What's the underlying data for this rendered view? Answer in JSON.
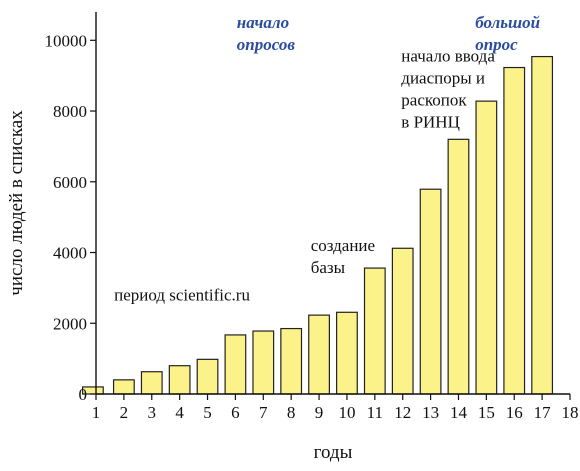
{
  "chart_data": {
    "type": "bar",
    "categories": [
      1,
      2,
      3,
      4,
      5,
      6,
      7,
      8,
      9,
      10,
      11,
      12,
      13,
      14,
      15,
      16,
      17
    ],
    "values": [
      200,
      400,
      630,
      800,
      980,
      1670,
      1780,
      1850,
      2230,
      2310,
      3560,
      4120,
      5790,
      7200,
      8280,
      9230,
      9540
    ],
    "xlabel": "годы",
    "ylabel": "число людей в списках",
    "xlim": [
      1,
      18
    ],
    "ylim": [
      0,
      10800
    ],
    "x_ticks": [
      1,
      2,
      3,
      4,
      5,
      6,
      7,
      8,
      9,
      10,
      11,
      12,
      13,
      14,
      15,
      16,
      17,
      18
    ],
    "y_ticks": [
      0,
      2000,
      4000,
      6000,
      8000,
      10000
    ],
    "bar_color": "#fbf28a",
    "bar_edge_color": "#222222",
    "grid": false,
    "annotations": [
      {
        "id": "period",
        "lines": [
          "период scientific.ru"
        ],
        "style": "plain"
      },
      {
        "id": "creation",
        "lines": [
          "создание",
          "базы"
        ],
        "style": "plain"
      },
      {
        "id": "rinc",
        "lines": [
          "начало ввода",
          "диаспоры и",
          "раскопок",
          "в РИНЦ"
        ],
        "style": "plain"
      },
      {
        "id": "surveys",
        "lines": [
          "начало",
          "опросов"
        ],
        "style": "bold-blue"
      },
      {
        "id": "big_survey",
        "lines": [
          "большой",
          "опрос"
        ],
        "style": "bold-blue"
      }
    ]
  }
}
